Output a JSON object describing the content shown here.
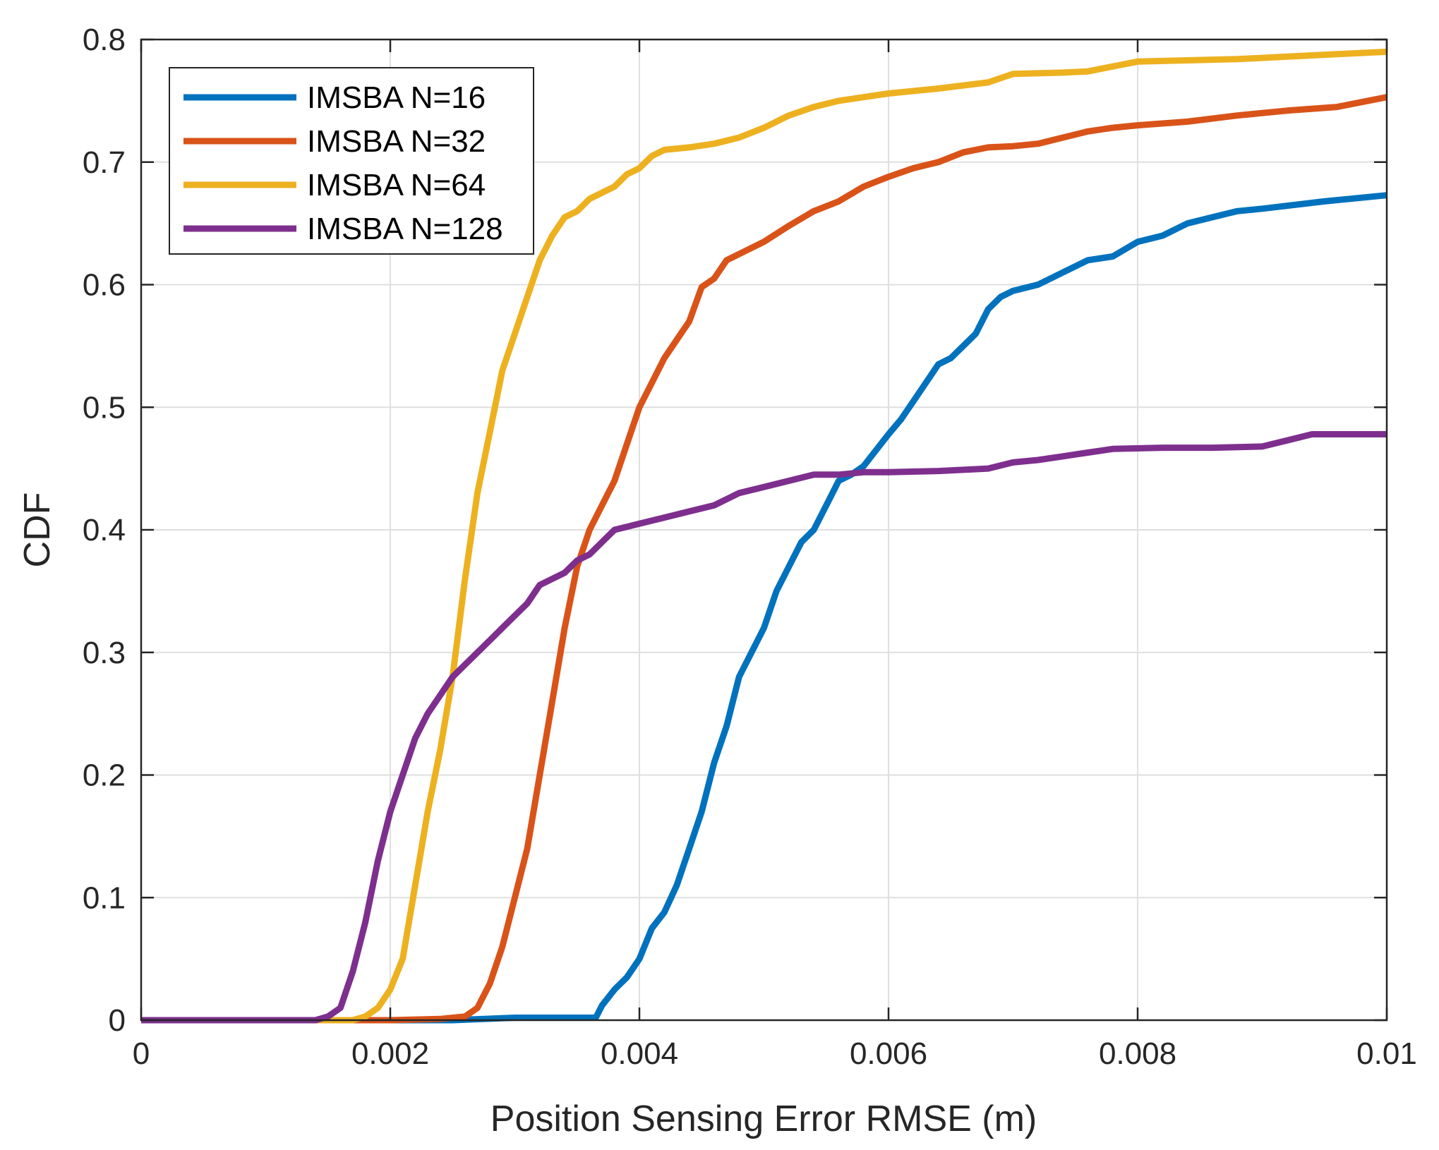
{
  "chart_data": {
    "type": "line",
    "title": "",
    "xlabel": "Position Sensing Error RMSE (m)",
    "ylabel": "CDF",
    "xlim": [
      0,
      0.01
    ],
    "ylim": [
      0,
      0.8
    ],
    "xticks": [
      0,
      0.002,
      0.004,
      0.006,
      0.008,
      0.01
    ],
    "xtick_labels": [
      "0",
      "0.002",
      "0.004",
      "0.006",
      "0.008",
      "0.01"
    ],
    "yticks": [
      0,
      0.1,
      0.2,
      0.3,
      0.4,
      0.5,
      0.6,
      0.7,
      0.8
    ],
    "ytick_labels": [
      "0",
      "0.1",
      "0.2",
      "0.3",
      "0.4",
      "0.5",
      "0.6",
      "0.7",
      "0.8"
    ],
    "grid": true,
    "legend_position": "top-left",
    "series": [
      {
        "name": "IMSBA N=16",
        "color": "#0072BD",
        "points": [
          [
            0,
            0
          ],
          [
            0.0025,
            0
          ],
          [
            0.003,
            0.002
          ],
          [
            0.00365,
            0.002
          ],
          [
            0.0037,
            0.012
          ],
          [
            0.0038,
            0.025
          ],
          [
            0.0039,
            0.035
          ],
          [
            0.004,
            0.05
          ],
          [
            0.0041,
            0.075
          ],
          [
            0.0042,
            0.088
          ],
          [
            0.0043,
            0.11
          ],
          [
            0.0044,
            0.14
          ],
          [
            0.0045,
            0.17
          ],
          [
            0.0046,
            0.21
          ],
          [
            0.0047,
            0.24
          ],
          [
            0.0048,
            0.28
          ],
          [
            0.0049,
            0.3
          ],
          [
            0.005,
            0.32
          ],
          [
            0.0051,
            0.35
          ],
          [
            0.0052,
            0.37
          ],
          [
            0.0053,
            0.39
          ],
          [
            0.0054,
            0.4
          ],
          [
            0.0055,
            0.42
          ],
          [
            0.0056,
            0.44
          ],
          [
            0.0057,
            0.445
          ],
          [
            0.0058,
            0.452
          ],
          [
            0.0059,
            0.465
          ],
          [
            0.006,
            0.478
          ],
          [
            0.0061,
            0.49
          ],
          [
            0.0062,
            0.505
          ],
          [
            0.0063,
            0.52
          ],
          [
            0.0064,
            0.535
          ],
          [
            0.0065,
            0.54
          ],
          [
            0.0066,
            0.55
          ],
          [
            0.0067,
            0.56
          ],
          [
            0.0068,
            0.58
          ],
          [
            0.0069,
            0.59
          ],
          [
            0.007,
            0.595
          ],
          [
            0.0072,
            0.6
          ],
          [
            0.0074,
            0.61
          ],
          [
            0.0076,
            0.62
          ],
          [
            0.0078,
            0.623
          ],
          [
            0.008,
            0.635
          ],
          [
            0.0082,
            0.64
          ],
          [
            0.0084,
            0.65
          ],
          [
            0.0086,
            0.655
          ],
          [
            0.0088,
            0.66
          ],
          [
            0.009,
            0.662
          ],
          [
            0.0095,
            0.668
          ],
          [
            0.01,
            0.673
          ]
        ]
      },
      {
        "name": "IMSBA N=32",
        "color": "#D95319",
        "points": [
          [
            0,
            0
          ],
          [
            0.002,
            0
          ],
          [
            0.0024,
            0.001
          ],
          [
            0.0026,
            0.003
          ],
          [
            0.0027,
            0.01
          ],
          [
            0.0028,
            0.03
          ],
          [
            0.0029,
            0.06
          ],
          [
            0.003,
            0.1
          ],
          [
            0.0031,
            0.14
          ],
          [
            0.0032,
            0.2
          ],
          [
            0.0033,
            0.26
          ],
          [
            0.0034,
            0.32
          ],
          [
            0.0035,
            0.37
          ],
          [
            0.0036,
            0.4
          ],
          [
            0.0037,
            0.42
          ],
          [
            0.0038,
            0.44
          ],
          [
            0.0039,
            0.47
          ],
          [
            0.004,
            0.5
          ],
          [
            0.0041,
            0.52
          ],
          [
            0.0042,
            0.54
          ],
          [
            0.0043,
            0.555
          ],
          [
            0.0044,
            0.57
          ],
          [
            0.0045,
            0.598
          ],
          [
            0.0046,
            0.605
          ],
          [
            0.0047,
            0.62
          ],
          [
            0.0048,
            0.625
          ],
          [
            0.005,
            0.635
          ],
          [
            0.0052,
            0.648
          ],
          [
            0.0054,
            0.66
          ],
          [
            0.0056,
            0.668
          ],
          [
            0.0058,
            0.68
          ],
          [
            0.006,
            0.688
          ],
          [
            0.0062,
            0.695
          ],
          [
            0.0064,
            0.7
          ],
          [
            0.0066,
            0.708
          ],
          [
            0.0068,
            0.712
          ],
          [
            0.007,
            0.713
          ],
          [
            0.0072,
            0.715
          ],
          [
            0.0074,
            0.72
          ],
          [
            0.0076,
            0.725
          ],
          [
            0.0078,
            0.728
          ],
          [
            0.008,
            0.73
          ],
          [
            0.0084,
            0.733
          ],
          [
            0.0088,
            0.738
          ],
          [
            0.0092,
            0.742
          ],
          [
            0.0096,
            0.745
          ],
          [
            0.01,
            0.753
          ]
        ]
      },
      {
        "name": "IMSBA N=64",
        "color": "#EDB120",
        "points": [
          [
            0,
            0
          ],
          [
            0.0017,
            0
          ],
          [
            0.0018,
            0.003
          ],
          [
            0.0019,
            0.01
          ],
          [
            0.002,
            0.025
          ],
          [
            0.0021,
            0.05
          ],
          [
            0.0022,
            0.11
          ],
          [
            0.0023,
            0.17
          ],
          [
            0.0024,
            0.22
          ],
          [
            0.0025,
            0.28
          ],
          [
            0.0026,
            0.36
          ],
          [
            0.0027,
            0.43
          ],
          [
            0.0028,
            0.48
          ],
          [
            0.0029,
            0.53
          ],
          [
            0.003,
            0.56
          ],
          [
            0.0031,
            0.59
          ],
          [
            0.0032,
            0.62
          ],
          [
            0.0033,
            0.64
          ],
          [
            0.0034,
            0.655
          ],
          [
            0.0035,
            0.66
          ],
          [
            0.0036,
            0.67
          ],
          [
            0.0037,
            0.675
          ],
          [
            0.0038,
            0.68
          ],
          [
            0.0039,
            0.69
          ],
          [
            0.004,
            0.695
          ],
          [
            0.0041,
            0.705
          ],
          [
            0.0042,
            0.71
          ],
          [
            0.0044,
            0.712
          ],
          [
            0.0046,
            0.715
          ],
          [
            0.0048,
            0.72
          ],
          [
            0.005,
            0.728
          ],
          [
            0.0052,
            0.738
          ],
          [
            0.0054,
            0.745
          ],
          [
            0.0056,
            0.75
          ],
          [
            0.0058,
            0.753
          ],
          [
            0.006,
            0.756
          ],
          [
            0.0064,
            0.76
          ],
          [
            0.0068,
            0.765
          ],
          [
            0.007,
            0.772
          ],
          [
            0.0074,
            0.773
          ],
          [
            0.0076,
            0.774
          ],
          [
            0.0078,
            0.778
          ],
          [
            0.008,
            0.782
          ],
          [
            0.0084,
            0.783
          ],
          [
            0.0088,
            0.784
          ],
          [
            0.0092,
            0.786
          ],
          [
            0.0096,
            0.788
          ],
          [
            0.01,
            0.79
          ]
        ]
      },
      {
        "name": "IMSBA N=128",
        "color": "#7E2F8E",
        "points": [
          [
            0,
            0
          ],
          [
            0.0014,
            0
          ],
          [
            0.0015,
            0.003
          ],
          [
            0.0016,
            0.01
          ],
          [
            0.0017,
            0.04
          ],
          [
            0.0018,
            0.08
          ],
          [
            0.0019,
            0.13
          ],
          [
            0.002,
            0.17
          ],
          [
            0.0021,
            0.2
          ],
          [
            0.0022,
            0.23
          ],
          [
            0.0023,
            0.25
          ],
          [
            0.0024,
            0.265
          ],
          [
            0.0025,
            0.28
          ],
          [
            0.0026,
            0.29
          ],
          [
            0.0027,
            0.3
          ],
          [
            0.0028,
            0.31
          ],
          [
            0.0029,
            0.32
          ],
          [
            0.003,
            0.33
          ],
          [
            0.0031,
            0.34
          ],
          [
            0.0032,
            0.355
          ],
          [
            0.0033,
            0.36
          ],
          [
            0.0034,
            0.365
          ],
          [
            0.0035,
            0.375
          ],
          [
            0.0036,
            0.38
          ],
          [
            0.0037,
            0.39
          ],
          [
            0.0038,
            0.4
          ],
          [
            0.004,
            0.405
          ],
          [
            0.0042,
            0.41
          ],
          [
            0.0044,
            0.415
          ],
          [
            0.0046,
            0.42
          ],
          [
            0.0048,
            0.43
          ],
          [
            0.005,
            0.435
          ],
          [
            0.0052,
            0.44
          ],
          [
            0.0054,
            0.445
          ],
          [
            0.0056,
            0.445
          ],
          [
            0.0058,
            0.447
          ],
          [
            0.006,
            0.447
          ],
          [
            0.0064,
            0.448
          ],
          [
            0.0068,
            0.45
          ],
          [
            0.007,
            0.455
          ],
          [
            0.0072,
            0.457
          ],
          [
            0.0074,
            0.46
          ],
          [
            0.0076,
            0.463
          ],
          [
            0.0078,
            0.466
          ],
          [
            0.0082,
            0.467
          ],
          [
            0.0086,
            0.467
          ],
          [
            0.009,
            0.468
          ],
          [
            0.0092,
            0.473
          ],
          [
            0.0094,
            0.478
          ],
          [
            0.01,
            0.478
          ]
        ]
      }
    ]
  }
}
